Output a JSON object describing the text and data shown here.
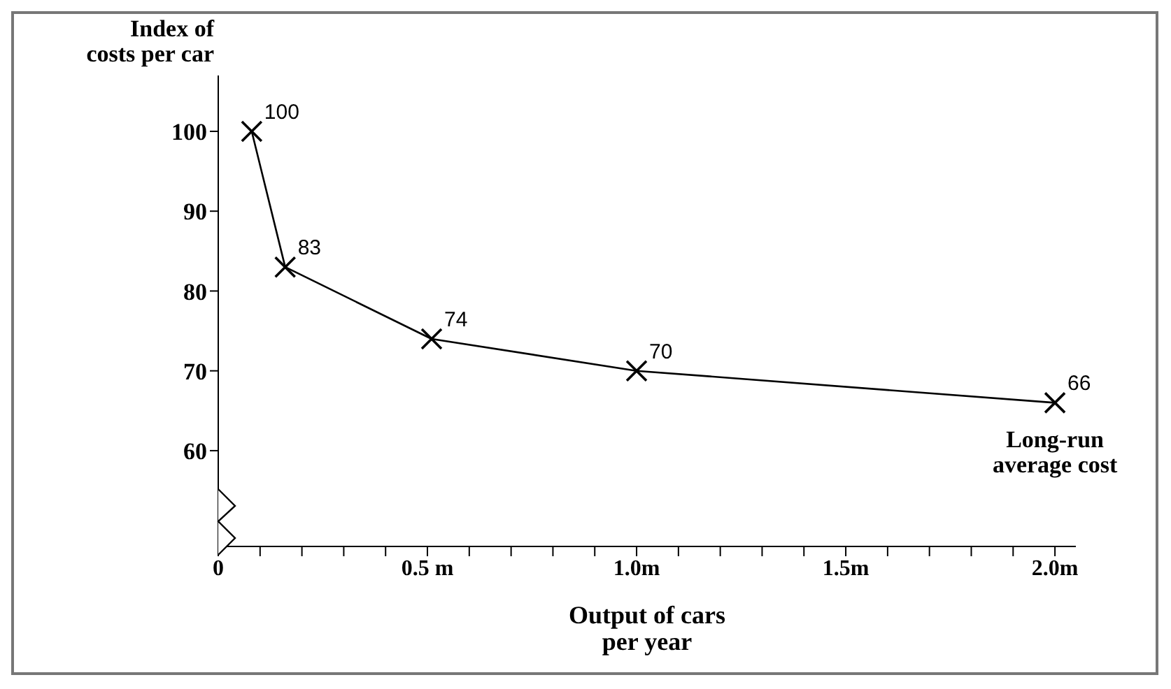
{
  "chart_data": {
    "type": "line",
    "ylabel": "Index of\ncosts per car",
    "xlabel": "Output of cars\nper year",
    "x": [
      0.08,
      0.16,
      0.51,
      1.0,
      2.0
    ],
    "series": [
      {
        "color": "#000000",
        "values": [
          100,
          83,
          74,
          70,
          66
        ]
      }
    ],
    "data_labels": true,
    "marker": "cross",
    "line_style": "solid",
    "grid": false,
    "legend": false,
    "xlim": [
      0,
      2.05
    ],
    "ylim": [
      48,
      107
    ],
    "xticks": [
      0,
      {
        "value": 0.1,
        "label": null
      },
      {
        "value": 0.2,
        "label": null
      },
      {
        "value": 0.3,
        "label": null
      },
      {
        "value": 0.4,
        "label": null
      },
      {
        "value": 0.5,
        "label": "0.5 m"
      },
      {
        "value": 0.6,
        "label": null
      },
      {
        "value": 0.7,
        "label": null
      },
      {
        "value": 0.8,
        "label": null
      },
      {
        "value": 0.9,
        "label": null
      },
      {
        "value": 1.0,
        "label": "1.0m"
      },
      {
        "value": 1.1,
        "label": null
      },
      {
        "value": 1.2,
        "label": null
      },
      {
        "value": 1.3,
        "label": null
      },
      {
        "value": 1.4,
        "label": null
      },
      {
        "value": 1.5,
        "label": "1.5m"
      },
      {
        "value": 1.6,
        "label": null
      },
      {
        "value": 1.7,
        "label": null
      },
      {
        "value": 1.8,
        "label": null
      },
      {
        "value": 1.9,
        "label": null
      },
      {
        "value": 2.0,
        "label": "2.0m"
      }
    ],
    "yticks": [
      60,
      70,
      80,
      90,
      100
    ],
    "annotations": [
      {
        "text": "Long-run\naverage cost",
        "x": 2.0,
        "y": 66
      }
    ]
  }
}
